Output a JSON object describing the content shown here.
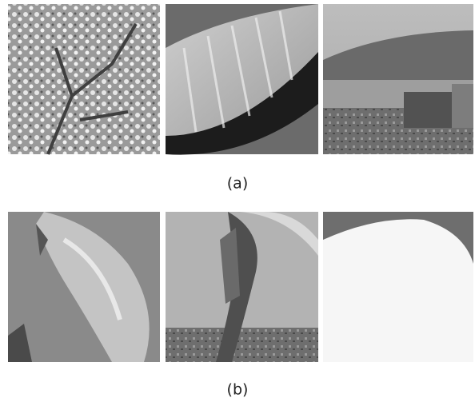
{
  "figure": {
    "rows": [
      {
        "caption": "(a)"
      },
      {
        "caption": "(b)"
      }
    ]
  }
}
